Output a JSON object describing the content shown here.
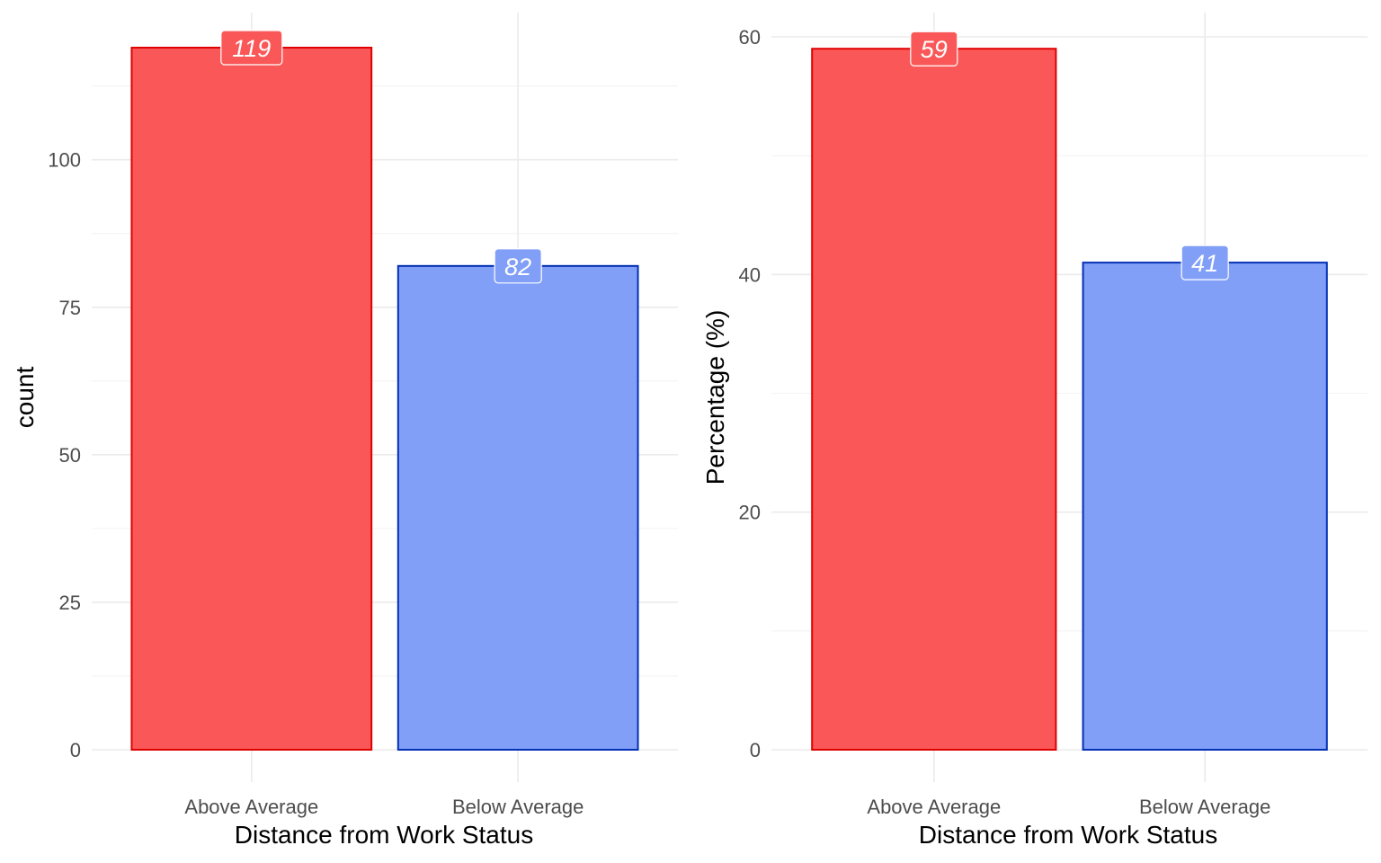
{
  "chart_data": [
    {
      "type": "bar",
      "categories": [
        "Above Average",
        "Below Average"
      ],
      "values": [
        119,
        82
      ],
      "data_labels": [
        "119",
        "82"
      ],
      "xlabel": "Distance from Work Status",
      "ylabel": "count",
      "ylim": [
        0,
        119
      ],
      "yticks": [
        0,
        25,
        50,
        75,
        100
      ],
      "yticklabels": [
        "0",
        "25",
        "50",
        "75",
        "100"
      ],
      "grid": true,
      "colors": {
        "fill": [
          "#fa5858",
          "#819ff7"
        ],
        "border": [
          "#df0101",
          "#0431b4"
        ]
      }
    },
    {
      "type": "bar",
      "categories": [
        "Above Average",
        "Below Average"
      ],
      "values": [
        59,
        41
      ],
      "data_labels": [
        "59",
        "41"
      ],
      "xlabel": "Distance from Work Status",
      "ylabel": "Percentage (%)",
      "ylim": [
        0,
        60
      ],
      "yticks": [
        0,
        20,
        40,
        60
      ],
      "yticklabels": [
        "0",
        "20",
        "40",
        "60"
      ],
      "grid": true,
      "colors": {
        "fill": [
          "#fa5858",
          "#819ff7"
        ],
        "border": [
          "#df0101",
          "#0431b4"
        ]
      }
    }
  ]
}
